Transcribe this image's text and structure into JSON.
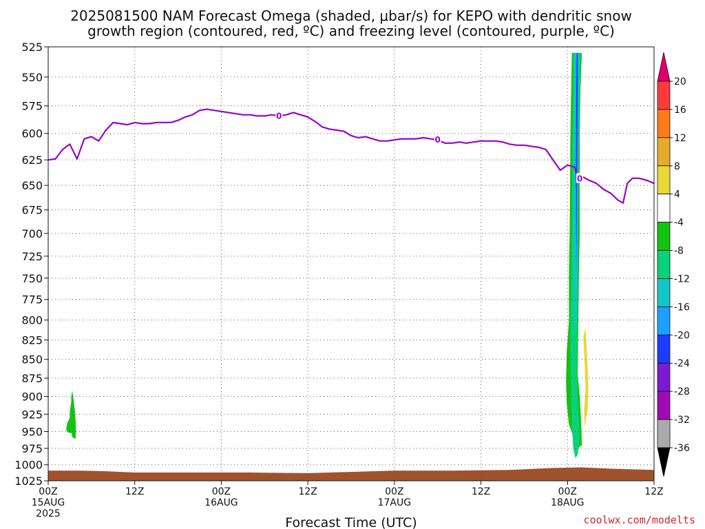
{
  "title_line1": "2025081500 NAM Forecast Omega (shaded, μbar/s) for KEPO with dendritic snow",
  "title_line2": "growth region (contoured, red, ºC) and freezing level (contoured, purple, ºC)",
  "credit": "coolwx.com/modelts",
  "chart_data": {
    "type": "contour-timeseries",
    "title": "2025081500 NAM Forecast Omega (shaded, μbar/s) for KEPO with dendritic snow growth region (contoured, red, ºC) and freezing level (contoured, purple, ºC)",
    "xlabel": "Forecast Time (UTC)",
    "ylabel": "",
    "x_ticks": [
      {
        "hour": 0,
        "line1": "00Z",
        "line2": "15AUG",
        "line3": "2025"
      },
      {
        "hour": 12,
        "line1": "12Z",
        "line2": "",
        "line3": ""
      },
      {
        "hour": 24,
        "line1": "00Z",
        "line2": "16AUG",
        "line3": ""
      },
      {
        "hour": 36,
        "line1": "12Z",
        "line2": "",
        "line3": ""
      },
      {
        "hour": 48,
        "line1": "00Z",
        "line2": "17AUG",
        "line3": ""
      },
      {
        "hour": 60,
        "line1": "12Z",
        "line2": "",
        "line3": ""
      },
      {
        "hour": 72,
        "line1": "00Z",
        "line2": "18AUG",
        "line3": ""
      },
      {
        "hour": 84,
        "line1": "12Z",
        "line2": "",
        "line3": ""
      }
    ],
    "xlim": [
      0,
      84
    ],
    "y_ticks": [
      "525",
      "550",
      "575",
      "600",
      "625",
      "650",
      "675",
      "700",
      "725",
      "750",
      "775",
      "800",
      "825",
      "850",
      "875",
      "900",
      "925",
      "950",
      "975",
      "1000",
      "1025"
    ],
    "ylim": [
      1025,
      525
    ],
    "y_scale": "log-pressure",
    "grid": true,
    "colorbar": {
      "labels": [
        "20",
        "16",
        "12",
        "8",
        "4",
        "-4",
        "-8",
        "-12",
        "-16",
        "-20",
        "-24",
        "-28",
        "-32",
        "-36"
      ],
      "colors": [
        "#e0006c",
        "#ff3a3a",
        "#ff7a1a",
        "#e8aa2c",
        "#e8d83a",
        "#ffffff",
        "#12c412",
        "#0ad27a",
        "#12c6c6",
        "#1aa0ff",
        "#1e3cff",
        "#7a1ad2",
        "#a00ab4",
        "#aaaaaa",
        "#000000"
      ]
    },
    "freezing_level": {
      "label": "0",
      "color": "#9900cc",
      "points": [
        [
          0,
          625
        ],
        [
          1,
          624
        ],
        [
          2,
          615
        ],
        [
          3,
          610
        ],
        [
          4,
          624
        ],
        [
          5,
          605
        ],
        [
          6,
          603
        ],
        [
          7,
          607
        ],
        [
          8,
          597
        ],
        [
          9,
          590
        ],
        [
          10,
          591
        ],
        [
          11,
          592
        ],
        [
          12,
          590
        ],
        [
          13,
          591
        ],
        [
          14,
          591
        ],
        [
          15,
          590
        ],
        [
          16,
          590
        ],
        [
          17,
          590
        ],
        [
          18,
          588
        ],
        [
          19,
          585
        ],
        [
          20,
          583
        ],
        [
          21,
          579
        ],
        [
          22,
          578
        ],
        [
          23,
          579
        ],
        [
          24,
          580
        ],
        [
          25,
          581
        ],
        [
          26,
          582
        ],
        [
          27,
          583
        ],
        [
          28,
          583
        ],
        [
          29,
          584
        ],
        [
          30,
          584
        ],
        [
          31,
          583
        ],
        [
          32,
          584
        ],
        [
          33,
          583
        ],
        [
          34,
          581
        ],
        [
          35,
          583
        ],
        [
          36,
          585
        ],
        [
          37,
          589
        ],
        [
          38,
          594
        ],
        [
          39,
          596
        ],
        [
          40,
          597
        ],
        [
          41,
          598
        ],
        [
          42,
          602
        ],
        [
          43,
          604
        ],
        [
          44,
          603
        ],
        [
          45,
          605
        ],
        [
          46,
          607
        ],
        [
          47,
          607
        ],
        [
          48,
          606
        ],
        [
          49,
          605
        ],
        [
          50,
          605
        ],
        [
          51,
          605
        ],
        [
          52,
          604
        ],
        [
          53,
          605
        ],
        [
          54,
          606
        ],
        [
          55,
          609
        ],
        [
          56,
          609
        ],
        [
          57,
          608
        ],
        [
          58,
          609
        ],
        [
          59,
          608
        ],
        [
          60,
          607
        ],
        [
          61,
          607
        ],
        [
          62,
          607
        ],
        [
          63,
          608
        ],
        [
          64,
          610
        ],
        [
          65,
          611
        ],
        [
          66,
          611
        ],
        [
          67,
          612
        ],
        [
          68,
          613
        ],
        [
          69,
          615
        ],
        [
          70,
          625
        ],
        [
          71,
          635
        ],
        [
          72,
          630
        ],
        [
          73,
          632
        ],
        [
          73.5,
          645
        ],
        [
          74,
          641
        ],
        [
          75,
          645
        ],
        [
          76,
          648
        ],
        [
          77,
          654
        ],
        [
          78,
          658
        ],
        [
          79,
          665
        ],
        [
          79.7,
          668
        ],
        [
          80.3,
          648
        ],
        [
          81,
          643
        ],
        [
          82,
          643
        ],
        [
          83,
          645
        ],
        [
          84,
          648
        ]
      ],
      "label_hours": [
        32,
        54,
        73.7
      ]
    },
    "omega_blobs": [
      {
        "value_range": "-4 to -8",
        "color": "#12c412",
        "points": [
          [
            2.5,
            948
          ],
          [
            2.6,
            939
          ],
          [
            3.0,
            930
          ],
          [
            3.0,
            920
          ],
          [
            3.2,
            908
          ],
          [
            3.2,
            900
          ],
          [
            3.35,
            892
          ],
          [
            3.5,
            903
          ],
          [
            3.7,
            920
          ],
          [
            3.8,
            935
          ],
          [
            3.85,
            950
          ],
          [
            3.8,
            961
          ],
          [
            3.4,
            959
          ],
          [
            3.2,
            952
          ],
          [
            2.8,
            952
          ]
        ]
      },
      {
        "value_range": "-4 to -8",
        "color": "#12c412",
        "points": [
          [
            72.2,
            800
          ],
          [
            72.2,
            740
          ],
          [
            72.3,
            700
          ],
          [
            72.35,
            650
          ],
          [
            72.4,
            600
          ],
          [
            72.6,
            530
          ],
          [
            74.0,
            530
          ],
          [
            73.8,
            560
          ],
          [
            73.7,
            600
          ],
          [
            73.7,
            650
          ],
          [
            73.7,
            700
          ],
          [
            73.6,
            740
          ],
          [
            73.5,
            800
          ],
          [
            73.4,
            870
          ],
          [
            73.7,
            900
          ],
          [
            73.9,
            940
          ],
          [
            74.0,
            970
          ],
          [
            73.4,
            975
          ],
          [
            72.9,
            960
          ],
          [
            72.2,
            940
          ],
          [
            71.9,
            910
          ],
          [
            71.8,
            880
          ],
          [
            71.9,
            840
          ]
        ]
      },
      {
        "value_range": "-8 to -12",
        "color": "#0ad27a",
        "points": [
          [
            72.5,
            900
          ],
          [
            72.4,
            820
          ],
          [
            72.6,
            700
          ],
          [
            72.7,
            600
          ],
          [
            72.8,
            530
          ],
          [
            73.8,
            530
          ],
          [
            73.6,
            600
          ],
          [
            73.5,
            700
          ],
          [
            73.4,
            800
          ],
          [
            73.3,
            870
          ],
          [
            73.5,
            920
          ],
          [
            73.7,
            958
          ],
          [
            73.4,
            985
          ],
          [
            73.1,
            990
          ],
          [
            72.8,
            975
          ],
          [
            72.6,
            940
          ]
        ]
      },
      {
        "value_range": "-12 to -16",
        "color": "#12c6c6",
        "points": [
          [
            72.8,
            720
          ],
          [
            72.8,
            650
          ],
          [
            72.9,
            600
          ],
          [
            73.0,
            530
          ],
          [
            73.6,
            530
          ],
          [
            73.5,
            600
          ],
          [
            73.4,
            650
          ],
          [
            73.4,
            720
          ],
          [
            73.3,
            770
          ],
          [
            73.2,
            810
          ],
          [
            73.0,
            810
          ],
          [
            72.85,
            780
          ]
        ]
      },
      {
        "value_range": "-16 to -20",
        "color": "#1aa0ff",
        "points": [
          [
            73.05,
            650
          ],
          [
            73.1,
            600
          ],
          [
            73.15,
            530
          ],
          [
            73.5,
            530
          ],
          [
            73.45,
            600
          ],
          [
            73.4,
            660
          ],
          [
            73.35,
            720
          ],
          [
            73.2,
            740
          ],
          [
            73.1,
            700
          ]
        ]
      },
      {
        "value_range": "-20 to -24",
        "color": "#1e3cff",
        "points": [
          [
            73.18,
            620
          ],
          [
            73.22,
            560
          ],
          [
            73.3,
            530
          ],
          [
            73.42,
            530
          ],
          [
            73.4,
            560
          ],
          [
            73.35,
            620
          ],
          [
            73.3,
            680
          ],
          [
            73.25,
            720
          ],
          [
            73.22,
            680
          ]
        ]
      },
      {
        "value_range": "4 to 8",
        "color": "#e8d83a",
        "points": [
          [
            74.2,
            820
          ],
          [
            74.5,
            810
          ],
          [
            74.8,
            860
          ],
          [
            74.9,
            890
          ],
          [
            74.8,
            920
          ],
          [
            74.6,
            930
          ],
          [
            74.4,
            945
          ],
          [
            74.3,
            920
          ],
          [
            74.5,
            890
          ],
          [
            74.4,
            860
          ]
        ]
      }
    ],
    "terrain": {
      "color": "#a0522d",
      "top_pressure": [
        [
          0,
          1009
        ],
        [
          4,
          1009
        ],
        [
          8,
          1010
        ],
        [
          12,
          1012
        ],
        [
          20,
          1012
        ],
        [
          28,
          1012
        ],
        [
          36,
          1013
        ],
        [
          42,
          1011
        ],
        [
          48,
          1009
        ],
        [
          56,
          1009
        ],
        [
          64,
          1008
        ],
        [
          70,
          1005
        ],
        [
          74,
          1004
        ],
        [
          78,
          1006
        ],
        [
          84,
          1008
        ]
      ]
    }
  }
}
